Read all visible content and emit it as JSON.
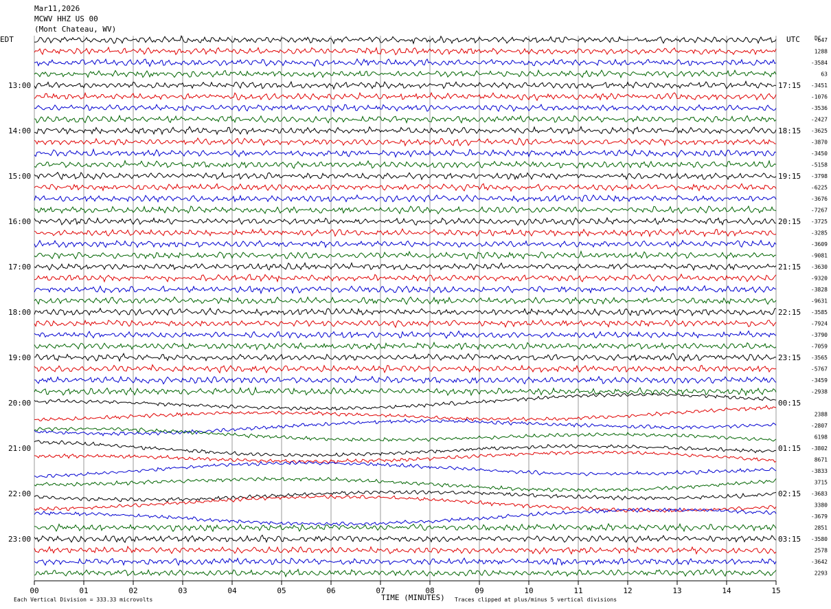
{
  "header": {
    "date": "Mar11,2026",
    "station": "MCWV HHZ US 00",
    "location": "(Mont Chateau, WV)"
  },
  "timezones": {
    "left": "EDT",
    "right": "UTC",
    "dc": "DC"
  },
  "footer": {
    "scale": "Each Vertical Division =  333.33 microvolts",
    "xlabel": "TIME (MINUTES)",
    "clip": "Traces clipped at plus/minus 5 vertical divisions"
  },
  "colors": {
    "black": "#000000",
    "red": "#e00000",
    "blue": "#0000d0",
    "green": "#006400",
    "grid": "#555555"
  },
  "chart_data": {
    "type": "line",
    "title": "Mar11,2026 MCWV HHZ US 00 (Mont Chateau, WV)",
    "xlabel": "TIME (MINUTES)",
    "xlim": [
      0,
      15
    ],
    "x_ticks": [
      "00",
      "01",
      "02",
      "03",
      "04",
      "05",
      "06",
      "07",
      "08",
      "09",
      "10",
      "11",
      "12",
      "13",
      "14",
      "15"
    ],
    "left_time_labels": [
      "13:00",
      "14:00",
      "15:00",
      "16:00",
      "17:00",
      "18:00",
      "19:00",
      "20:00",
      "21:00",
      "22:00",
      "23:00"
    ],
    "right_time_labels": [
      "17:15",
      "18:15",
      "19:15",
      "20:15",
      "21:15",
      "22:15",
      "23:15",
      "00:15",
      "01:15",
      "02:15",
      "03:15"
    ],
    "dc_offsets": [
      "-647",
      "1288",
      "-3584",
      "63",
      "-3451",
      "-1076",
      "-3536",
      "-2427",
      "-3625",
      "-3870",
      "-3450",
      "-5158",
      "-3798",
      "-6225",
      "-3676",
      "-7267",
      "-3725",
      "-3285",
      "-3609",
      "-9081",
      "-3630",
      "-9320",
      "-3828",
      "-9631",
      "-3585",
      "-7924",
      "-3790",
      "-7059",
      "-3565",
      "-5767",
      "-3459",
      "-2938",
      "",
      "2388",
      "-2807",
      "6198",
      "-3802",
      "8671",
      "-3833",
      "3715",
      "-3683",
      "3380",
      "-3679",
      "2851",
      "-3580",
      "2578",
      "-3642",
      "2293"
    ],
    "trace_colors": [
      "black",
      "red",
      "blue",
      "green"
    ],
    "trace_count": 48,
    "traces_per_hour": 4,
    "minutes_per_trace": 15,
    "notes": [
      "Each Vertical Division =  333.33 microvolts",
      "Traces clipped at plus/minus 5 vertical divisions"
    ]
  }
}
